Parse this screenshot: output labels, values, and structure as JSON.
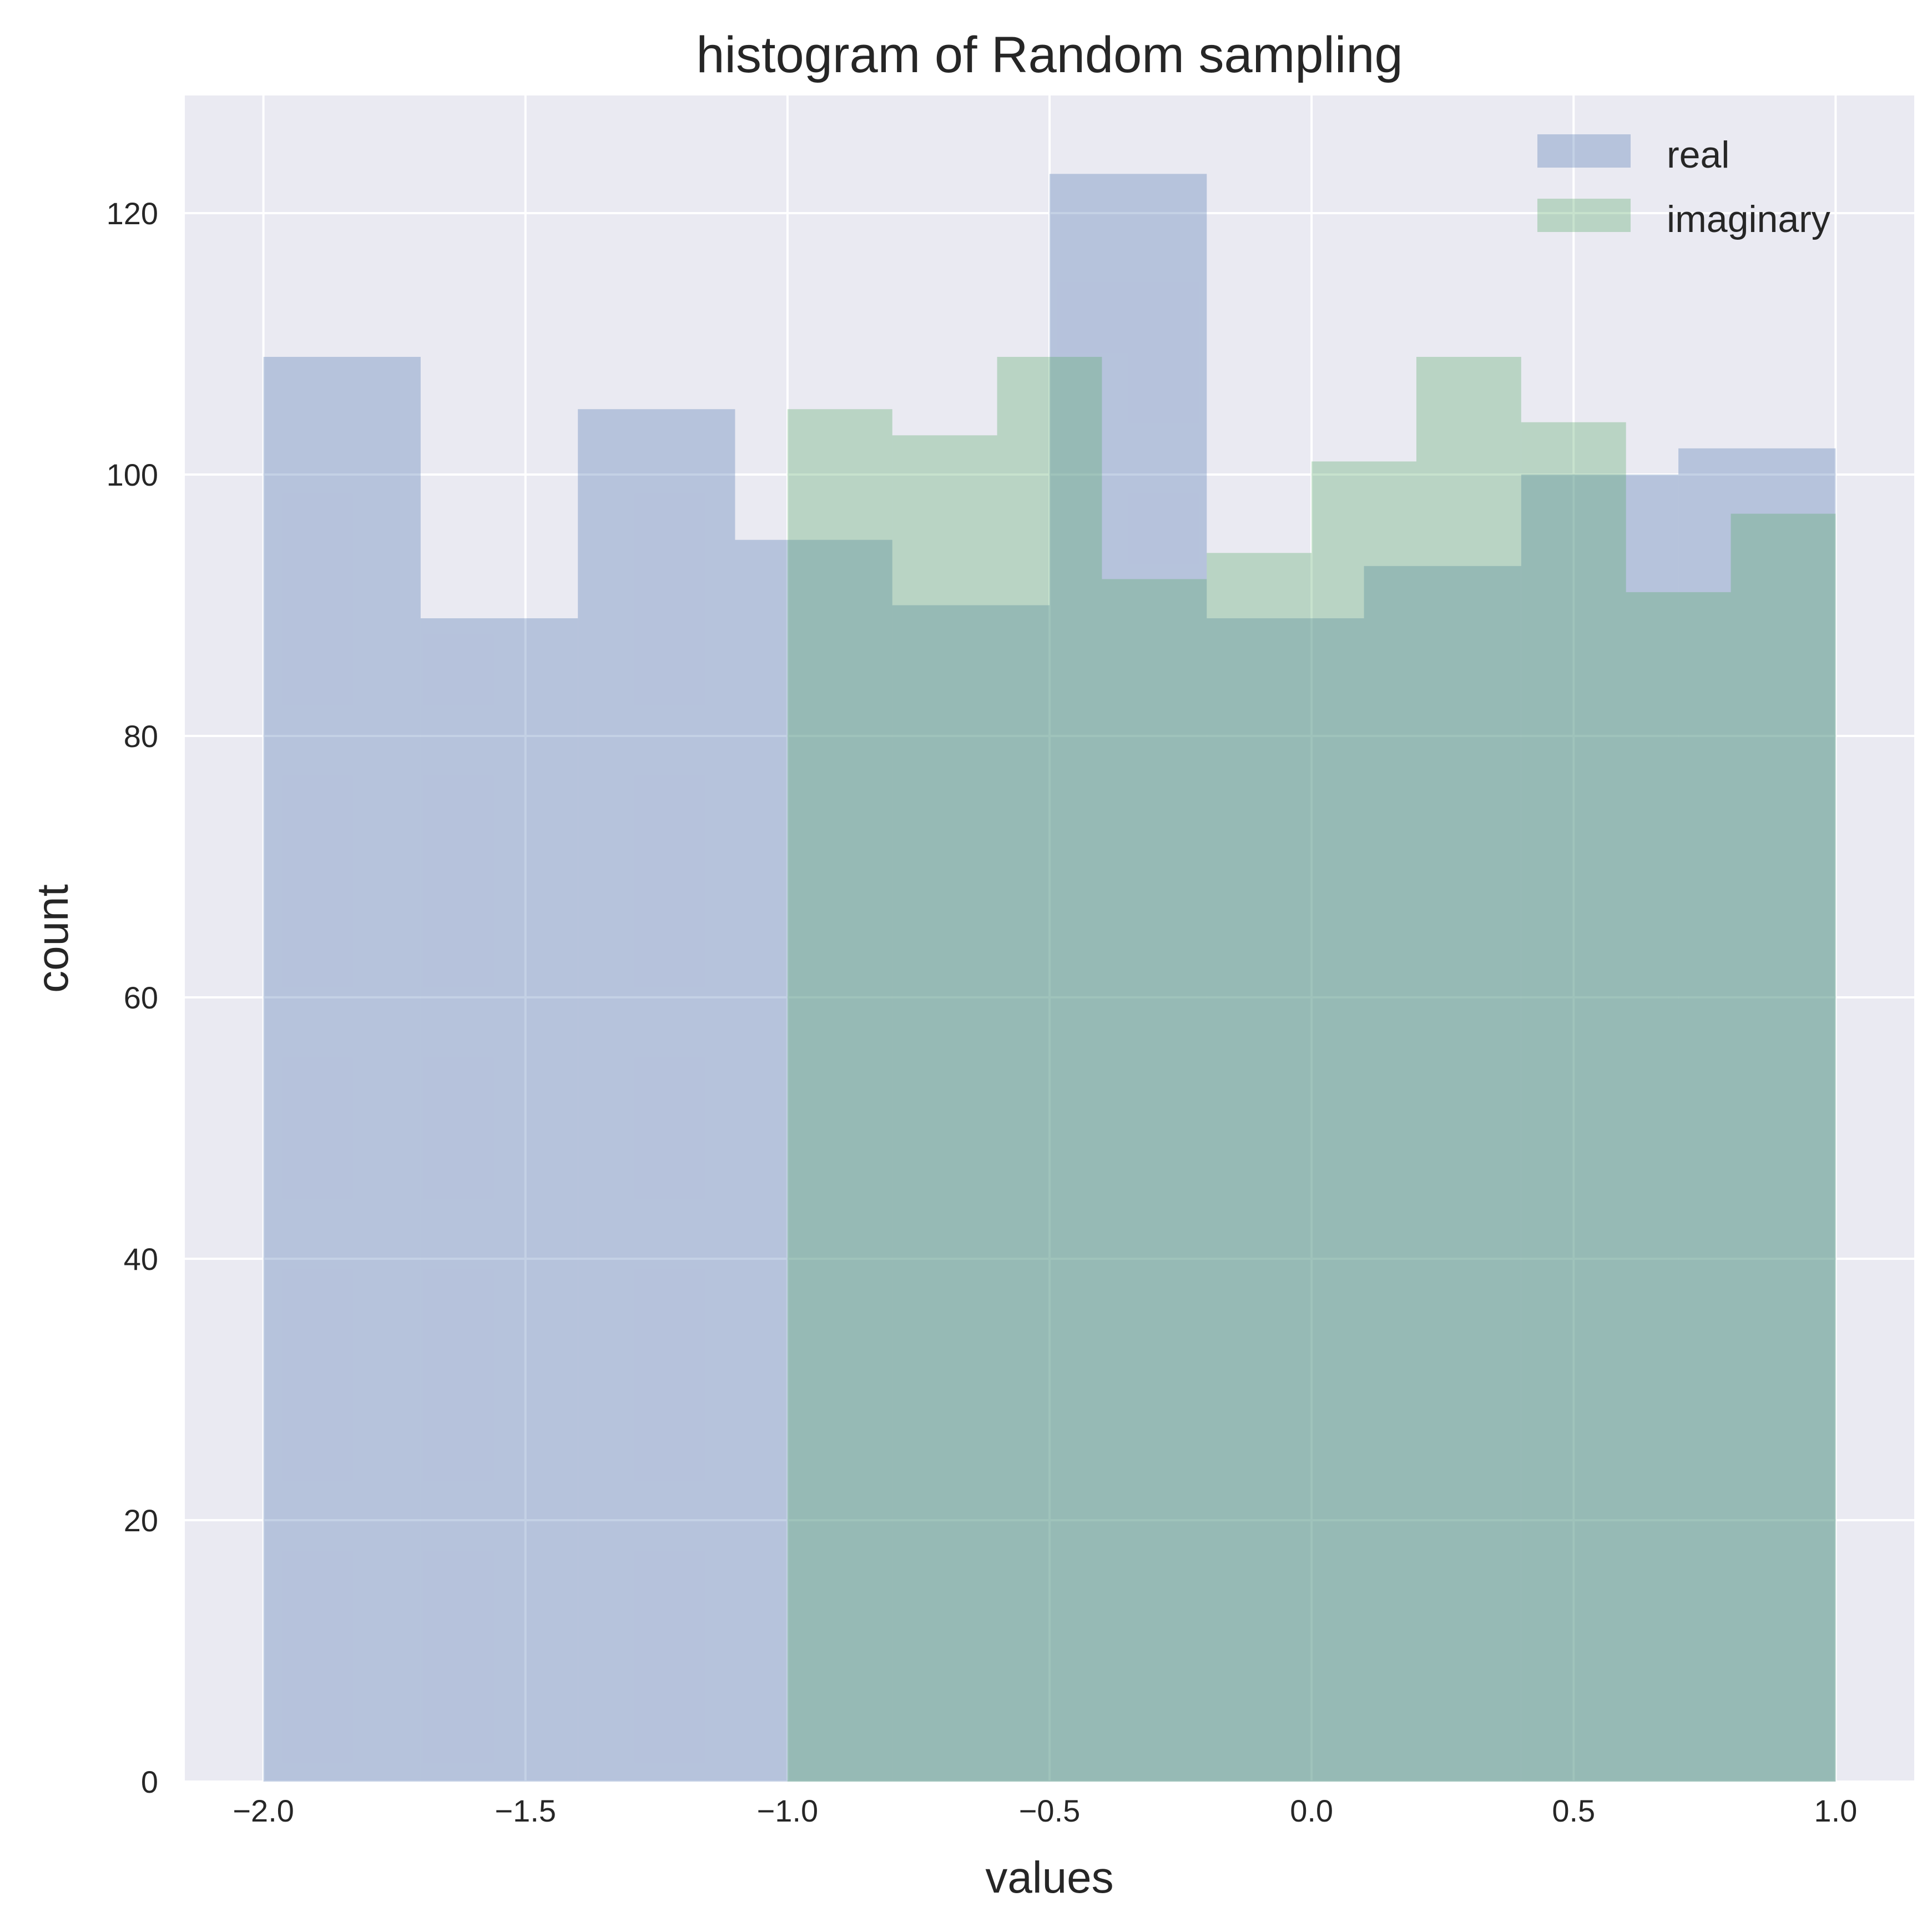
{
  "chart_data": {
    "type": "histogram",
    "title": "histogram of Random sampling",
    "xlabel": "values",
    "ylabel": "count",
    "xlim": [
      -2.15,
      1.15
    ],
    "ylim": [
      0,
      129
    ],
    "xticks": [
      -2.0,
      -1.5,
      -1.0,
      -0.5,
      0.0,
      0.5,
      1.0
    ],
    "xtick_labels": [
      "−2.0",
      "−1.5",
      "−1.0",
      "−0.5",
      "0.0",
      "0.5",
      "1.0"
    ],
    "yticks": [
      0,
      20,
      40,
      60,
      80,
      100,
      120
    ],
    "ytick_labels": [
      "0",
      "20",
      "40",
      "60",
      "80",
      "100",
      "120"
    ],
    "grid": true,
    "background_color": "#eaeaf2",
    "legend_position": "top-right",
    "series": [
      {
        "name": "real",
        "color": "#4c72b0",
        "opacity": 0.33,
        "bin_edges": [
          -2.0,
          -1.7,
          -1.4,
          -1.1,
          -0.8,
          -0.5,
          -0.2,
          0.1,
          0.4,
          0.7,
          1.0
        ],
        "counts": [
          109,
          89,
          105,
          95,
          90,
          123,
          89,
          93,
          100,
          102
        ]
      },
      {
        "name": "imaginary",
        "color": "#55a868",
        "opacity": 0.33,
        "bin_edges": [
          -1.0,
          -0.8,
          -0.6,
          -0.4,
          -0.2,
          0.0,
          0.2,
          0.4,
          0.6,
          0.8,
          1.0
        ],
        "counts": [
          105,
          103,
          109,
          92,
          94,
          101,
          109,
          104,
          91,
          97
        ]
      }
    ]
  }
}
